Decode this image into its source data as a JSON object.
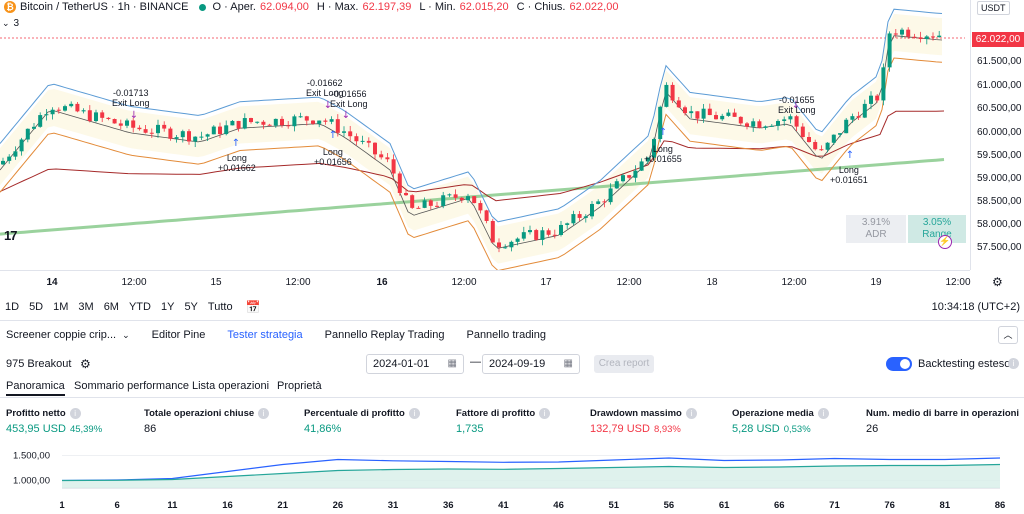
{
  "header": {
    "symbol": "Bitcoin / TetherUS · 1h · BINANCE",
    "open_label": "O · Aper.",
    "open_value": "62.094,00",
    "high_label": "H · Max.",
    "high_value": "62.197,39",
    "low_label": "L · Min.",
    "low_value": "62.015,20",
    "close_label": "C · Chius.",
    "close_value": "62.022,00",
    "indicator_count": "3"
  },
  "price_axis": {
    "currency": "USDT",
    "current_price": "62.022,00",
    "ticks": [
      "61.500,00",
      "61.000,00",
      "60.500,00",
      "60.000,00",
      "59.500,00",
      "59.000,00",
      "58.500,00",
      "58.000,00",
      "57.500,00"
    ]
  },
  "time_axis": {
    "ticks": [
      {
        "label": "14",
        "bold": true
      },
      {
        "label": "12:00",
        "bold": false
      },
      {
        "label": "15",
        "bold": false
      },
      {
        "label": "12:00",
        "bold": false
      },
      {
        "label": "16",
        "bold": true
      },
      {
        "label": "12:00",
        "bold": false
      },
      {
        "label": "17",
        "bold": false
      },
      {
        "label": "12:00",
        "bold": false
      },
      {
        "label": "18",
        "bold": false
      },
      {
        "label": "12:00",
        "bold": false
      },
      {
        "label": "19",
        "bold": false
      },
      {
        "label": "12:00",
        "bold": false
      }
    ]
  },
  "trade_labels": [
    {
      "line1": "-0.01713",
      "line2": "Exit Long"
    },
    {
      "line1": "-0.01662",
      "line2": "Exit Long"
    },
    {
      "line1": "-0.01656",
      "line2": "Exit Long"
    },
    {
      "line1": "-0.01655",
      "line2": "Exit Long"
    },
    {
      "line1": "Long",
      "line2": "+0.01662"
    },
    {
      "line1": "Long",
      "line2": "+0.01656"
    },
    {
      "line1": "Long",
      "line2": "+0.01655"
    },
    {
      "line1": "Long",
      "line2": "+0.01651"
    }
  ],
  "stats": {
    "adr_value": "3.91%",
    "adr_label": "ADR",
    "range_value": "3.05%",
    "range_label": "Range"
  },
  "intervals": [
    "1D",
    "5D",
    "1M",
    "3M",
    "6M",
    "YTD",
    "1Y",
    "5Y",
    "Tutto"
  ],
  "clock": "10:34:18 (UTC+2)",
  "panel_tabs": [
    "Screener coppie crip...",
    "Editor Pine",
    "Tester strategia",
    "Pannello Replay Trading",
    "Pannello trading"
  ],
  "strategy": {
    "name": "975 Breakout",
    "date_from": "2024-01-01",
    "date_to": "2024-09-19",
    "create_report": "Crea report",
    "extended_label": "Backtesting esteso"
  },
  "sub_tabs": [
    "Panoramica",
    "Sommario performance",
    "Lista operazioni",
    "Proprietà"
  ],
  "metrics": [
    {
      "label": "Profitto netto",
      "value": "453,95 USD",
      "sub": "45,39%",
      "color": "green"
    },
    {
      "label": "Totale operazioni chiuse",
      "value": "86",
      "sub": "",
      "color": "dark"
    },
    {
      "label": "Percentuale di profitto",
      "value": "41,86%",
      "sub": "",
      "color": "green"
    },
    {
      "label": "Fattore di profitto",
      "value": "1,735",
      "sub": "",
      "color": "green"
    },
    {
      "label": "Drawdown massimo",
      "value": "132,79 USD",
      "sub": "8,93%",
      "color": "red"
    },
    {
      "label": "Operazione media",
      "value": "5,28 USD",
      "sub": "0,53%",
      "color": "green"
    },
    {
      "label": "Num. medio di barre in operazioni",
      "value": "26",
      "sub": "",
      "color": "dark"
    }
  ],
  "equity": {
    "y_ticks": [
      "1.500,00",
      "1.000,00"
    ],
    "x_ticks": [
      "1",
      "6",
      "11",
      "16",
      "21",
      "26",
      "31",
      "36",
      "41",
      "46",
      "51",
      "56",
      "61",
      "66",
      "71",
      "76",
      "81",
      "86"
    ]
  },
  "chart_data": [
    {
      "type": "line",
      "title": "",
      "x": [
        1,
        6,
        11,
        16,
        21,
        26,
        31,
        36,
        41,
        46,
        51,
        56,
        61,
        66,
        71,
        76,
        81,
        86
      ],
      "series": [
        {
          "values": [
            1000,
            1010,
            1040,
            1180,
            1320,
            1420,
            1395,
            1380,
            1365,
            1370,
            1410,
            1450,
            1400,
            1410,
            1440,
            1420,
            1420,
            1450
          ]
        },
        {
          "values": [
            1000,
            1005,
            1020,
            1080,
            1140,
            1200,
            1220,
            1230,
            1225,
            1240,
            1260,
            1280,
            1260,
            1270,
            1290,
            1300,
            1300,
            1320
          ]
        }
      ],
      "ylim": [
        850,
        1650
      ],
      "colors": [
        "#2962ff",
        "#26a69a"
      ]
    }
  ]
}
